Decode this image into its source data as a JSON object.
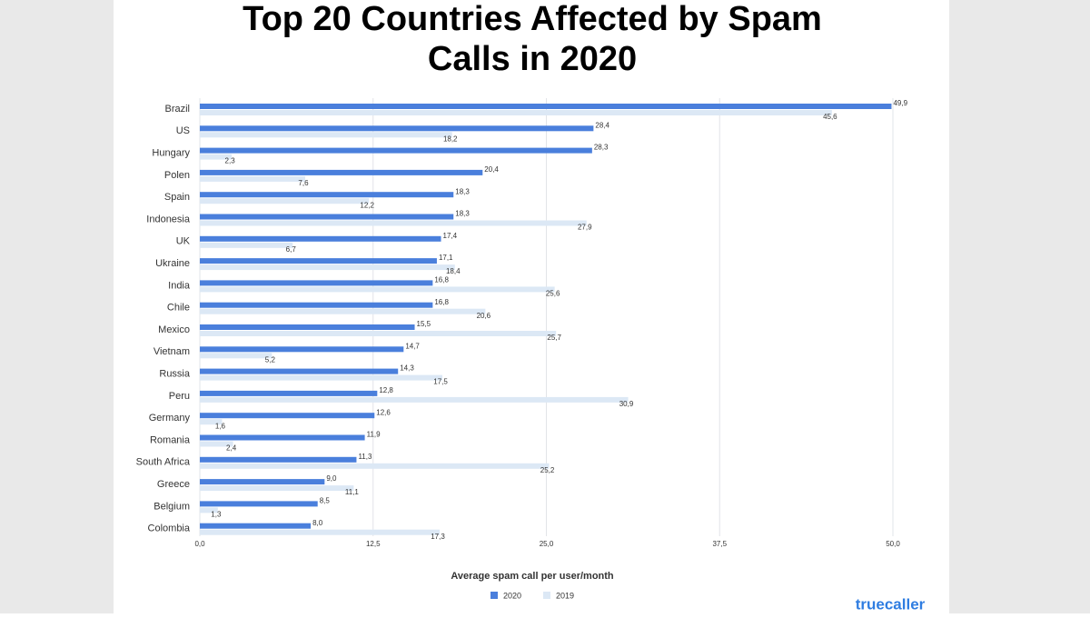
{
  "chart_data": {
    "type": "bar",
    "orientation": "horizontal",
    "title": "Top 20 Countries Affected by Spam",
    "subtitle": "Calls in 2020",
    "x_label": "Average spam call per user/month",
    "brand": "truecaller",
    "categories": [
      "Brazil",
      "US",
      "Hungary",
      "Polen",
      "Spain",
      "Indonesia",
      "UK",
      "Ukraine",
      "India",
      "Chile",
      "Mexico",
      "Vietnam",
      "Russia",
      "Peru",
      "Germany",
      "Romania",
      "South Africa",
      "Greece",
      "Belgium",
      "Colombia"
    ],
    "series": [
      {
        "name": "2020",
        "color": "#4a7fdc",
        "values": [
          49.9,
          28.4,
          28.3,
          20.4,
          18.3,
          18.3,
          17.4,
          17.1,
          16.8,
          16.8,
          15.5,
          14.7,
          14.3,
          12.8,
          12.6,
          11.9,
          11.3,
          9.0,
          8.5,
          8.0
        ],
        "value_labels": [
          "49,9",
          "28,4",
          "28,3",
          "20,4",
          "18,3",
          "18,3",
          "17,4",
          "17,1",
          "16,8",
          "16,8",
          "15,5",
          "14,7",
          "14,3",
          "12,8",
          "12,6",
          "11,9",
          "11,3",
          "9,0",
          "8,5",
          "8,0"
        ]
      },
      {
        "name": "2019",
        "color": "#dce8f5",
        "values": [
          45.6,
          18.2,
          2.3,
          7.6,
          12.2,
          27.9,
          6.7,
          18.4,
          25.6,
          20.6,
          25.7,
          5.2,
          17.5,
          30.9,
          1.6,
          2.4,
          25.2,
          11.1,
          1.3,
          17.3
        ],
        "value_labels": [
          "45,6",
          "18,2",
          "2,3",
          "7,6",
          "12,2",
          "27,9",
          "6,7",
          "18,4",
          "25,6",
          "20,6",
          "25,7",
          "5,2",
          "17,5",
          "30,9",
          "1,6",
          "2,4",
          "25,2",
          "11,1",
          "1,3",
          "17,3"
        ]
      }
    ],
    "xlim": [
      0,
      50
    ],
    "xticks": [
      {
        "value": 0,
        "label": "0,0"
      },
      {
        "value": 12.5,
        "label": "12,5"
      },
      {
        "value": 25,
        "label": "25,0"
      },
      {
        "value": 37.5,
        "label": "37,5"
      },
      {
        "value": 50,
        "label": "50,0"
      }
    ],
    "grid": true,
    "legend": "bottom"
  }
}
